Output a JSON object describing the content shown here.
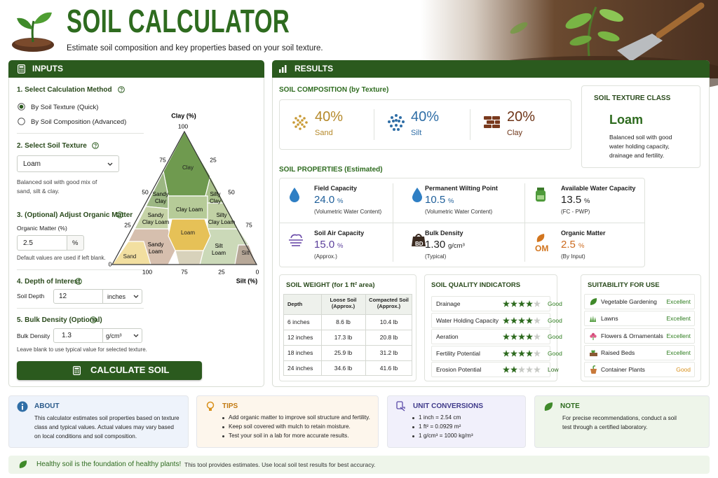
{
  "header": {
    "title": "SOIL CALCULATOR",
    "subtitle": "Estimate soil composition and key properties based on your soil texture."
  },
  "inputs": {
    "title": "INPUTS",
    "method": {
      "heading": "1. Select Calculation Method",
      "options": [
        "By Soil Texture (Quick)",
        "By Soil Composition (Advanced)"
      ]
    },
    "texture": {
      "heading": "2. Select Soil Texture",
      "selected": "Loam",
      "note": "Balanced soil with good mix of sand, silt & clay."
    },
    "organic": {
      "heading": "3. (Optional) Adjust Organic Matter",
      "label": "Organic Matter (%)",
      "value": "2.5",
      "unit": "%",
      "note": "Default values are used if left blank."
    },
    "depth": {
      "heading": "4. Depth of Interest",
      "label": "Soil Depth",
      "value": "12",
      "unit": "inches"
    },
    "bulk": {
      "heading": "5. Bulk Density (Optional)",
      "label": "Bulk Density",
      "value": "1.3",
      "unit": "g/cm³",
      "note": "Leave blank to use typical value for selected texture."
    },
    "button": "CALCULATE SOIL"
  },
  "triangle": {
    "top_label": "Clay (%)",
    "bottom_label": "Silt (%)",
    "left_ticks": [
      "100",
      "75",
      "50",
      "25",
      "0"
    ],
    "right_ticks": [
      "25",
      "50",
      "75"
    ],
    "bottom_ticks": [
      "100",
      "75",
      "25",
      "0"
    ],
    "regions": [
      "Clay",
      "Sandy Clay",
      "Silty Clay",
      "Sandy Clay Loam",
      "Clay Loam",
      "Silty Clay Loam",
      "Loam",
      "Sandy Loam",
      "Silt Loam",
      "Sand",
      "Silt"
    ]
  },
  "results": {
    "title": "RESULTS",
    "composition": {
      "title": "SOIL COMPOSITION (by Texture)",
      "items": [
        {
          "value": "40%",
          "label": "Sand"
        },
        {
          "value": "40%",
          "label": "Silt"
        },
        {
          "value": "20%",
          "label": "Clay"
        }
      ]
    },
    "texture_class": {
      "title": "SOIL TEXTURE CLASS",
      "name": "Loam",
      "description": "Balanced soil with good water holding capacity, drainage and fertility."
    },
    "properties": {
      "title": "SOIL PROPERTIES (Estimated)",
      "items": [
        {
          "label": "Field Capacity",
          "value": "24.0",
          "unit": "%",
          "note": "(Volumetric Water Content)"
        },
        {
          "label": "Permanent Wilting Point",
          "value": "10.5",
          "unit": "%",
          "note": "(Volumetric Water Content)"
        },
        {
          "label": "Available Water Capacity",
          "value": "13.5",
          "unit": "%",
          "note": "(FC - PWP)"
        },
        {
          "label": "Soil Air Capacity",
          "value": "15.0",
          "unit": "%",
          "note": "(Approx.)"
        },
        {
          "label": "Bulk Density",
          "value": "1.30",
          "unit": "g/cm³",
          "note": "(Typical)",
          "icon": "BD"
        },
        {
          "label": "Organic Matter",
          "value": "2.5",
          "unit": "%",
          "note": "(By Input)",
          "icon": "OM"
        }
      ]
    },
    "weight": {
      "title": "SOIL WEIGHT (for 1 ft² area)",
      "headers": [
        "Depth",
        "Loose Soil (Approx.)",
        "Compacted Soil (Approx.)"
      ],
      "rows": [
        [
          "6 inches",
          "8.6 lb",
          "10.4 lb"
        ],
        [
          "12 inches",
          "17.3 lb",
          "20.8 lb"
        ],
        [
          "18 inches",
          "25.9 lb",
          "31.2 lb"
        ],
        [
          "24 inches",
          "34.6 lb",
          "41.6 lb"
        ]
      ]
    },
    "quality": {
      "title": "SOIL QUALITY INDICATORS",
      "rating_scale": 5,
      "rows": [
        {
          "name": "Drainage",
          "rating": 4,
          "label": "Good"
        },
        {
          "name": "Water Holding Capacity",
          "rating": 4,
          "label": "Good"
        },
        {
          "name": "Aeration",
          "rating": 4,
          "label": "Good"
        },
        {
          "name": "Fertility Potential",
          "rating": 4,
          "label": "Good"
        },
        {
          "name": "Erosion Potential",
          "rating": 2,
          "label": "Low"
        }
      ]
    },
    "suitability": {
      "title": "SUITABILITY FOR USE",
      "rows": [
        {
          "name": "Vegetable Gardening",
          "rating": "Excellent"
        },
        {
          "name": "Lawns",
          "rating": "Excellent"
        },
        {
          "name": "Flowers & Ornamentals",
          "rating": "Excellent"
        },
        {
          "name": "Raised Beds",
          "rating": "Excellent"
        },
        {
          "name": "Container Plants",
          "rating": "Good"
        }
      ]
    }
  },
  "cards": {
    "about": {
      "title": "ABOUT",
      "text": "This calculator estimates soil properties based on texture class and typical values. Actual values may vary based on local conditions and soil composition."
    },
    "tips": {
      "title": "TIPS",
      "items": [
        "Add organic matter to improve soil structure and fertility.",
        "Keep soil covered with mulch to retain moisture.",
        "Test your soil in a lab for more accurate results."
      ]
    },
    "units": {
      "title": "UNIT CONVERSIONS",
      "items": [
        "1 inch = 2.54 cm",
        "1 ft² = 0.0929 m²",
        "1 g/cm³ = 1000 kg/m³"
      ]
    },
    "note": {
      "title": "NOTE",
      "text": "For precise recommendations, conduct a soil test through a certified laboratory."
    }
  },
  "footer": {
    "slogan": "Healthy soil is the foundation of healthy plants!",
    "disclaimer": "This tool provides estimates. Use local soil test results for best accuracy."
  }
}
